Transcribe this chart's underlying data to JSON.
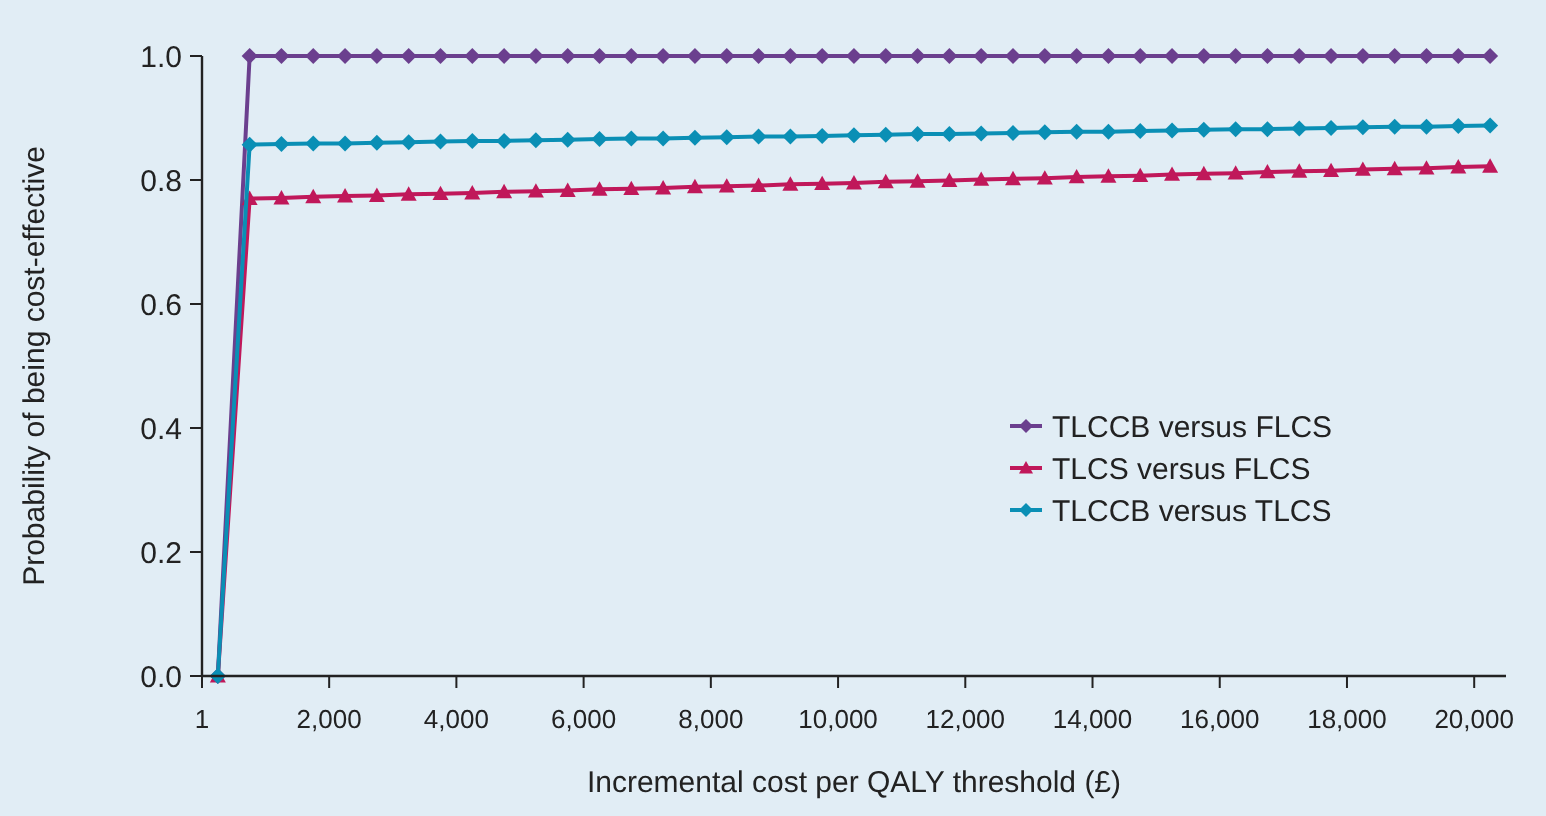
{
  "chart_data": {
    "type": "line",
    "xlabel": "Incremental cost per QALY threshold (£)",
    "ylabel": "Probability of being cost-effective",
    "x": [
      250,
      750,
      1250,
      1750,
      2250,
      2750,
      3250,
      3750,
      4250,
      4750,
      5250,
      5750,
      6250,
      6750,
      7250,
      7750,
      8250,
      8750,
      9250,
      9750,
      10250,
      10750,
      11250,
      11750,
      12250,
      12750,
      13250,
      13750,
      14250,
      14750,
      15250,
      15750,
      16250,
      16750,
      17250,
      17750,
      18250,
      18750,
      19250,
      19750,
      20250
    ],
    "xlim": [
      1,
      20500
    ],
    "xticks": [
      1,
      {
        "value": 2000,
        "label": "2,000"
      },
      {
        "value": 4000,
        "label": "4,000"
      },
      {
        "value": 6000,
        "label": "6,000"
      },
      {
        "value": 8000,
        "label": "8,000"
      },
      {
        "value": 10000,
        "label": "10,000"
      },
      {
        "value": 12000,
        "label": "12,000"
      },
      {
        "value": 14000,
        "label": "14,000"
      },
      {
        "value": 16000,
        "label": "16,000"
      },
      {
        "value": 18000,
        "label": "18,000"
      },
      {
        "value": 20000,
        "label": "20,000"
      }
    ],
    "ylim": [
      0,
      1
    ],
    "yticks": [
      {
        "value": 0,
        "label": "0.0"
      },
      {
        "value": 0.2,
        "label": "0.2"
      },
      {
        "value": 0.4,
        "label": "0.4"
      },
      {
        "value": 0.6,
        "label": "0.6"
      },
      {
        "value": 0.8,
        "label": "0.8"
      },
      {
        "value": 1,
        "label": "1.0"
      }
    ],
    "grid": false,
    "legend": "right",
    "series": [
      {
        "name": "TLCCB versus FLCS",
        "color": "#6b3f8e",
        "marker": "diamond",
        "values": [
          0,
          1,
          1,
          1,
          1,
          1,
          1,
          1,
          1,
          1,
          1,
          1,
          1,
          1,
          1,
          1,
          1,
          1,
          1,
          1,
          1,
          1,
          1,
          1,
          1,
          1,
          1,
          1,
          1,
          1,
          1,
          1,
          1,
          1,
          1,
          1,
          1,
          1,
          1,
          1,
          1
        ]
      },
      {
        "name": "TLCS versus FLCS",
        "color": "#c0185a",
        "marker": "triangle",
        "values": [
          0,
          0.77,
          0.771,
          0.773,
          0.774,
          0.775,
          0.777,
          0.778,
          0.779,
          0.781,
          0.782,
          0.783,
          0.785,
          0.786,
          0.787,
          0.789,
          0.79,
          0.791,
          0.793,
          0.794,
          0.795,
          0.797,
          0.798,
          0.799,
          0.801,
          0.802,
          0.803,
          0.805,
          0.806,
          0.807,
          0.809,
          0.81,
          0.811,
          0.813,
          0.814,
          0.815,
          0.817,
          0.818,
          0.819,
          0.821,
          0.822
        ]
      },
      {
        "name": "TLCCB versus TLCS",
        "color": "#0a8fb5",
        "marker": "diamond",
        "values": [
          0,
          0.857,
          0.858,
          0.859,
          0.859,
          0.86,
          0.861,
          0.862,
          0.863,
          0.863,
          0.864,
          0.865,
          0.866,
          0.867,
          0.867,
          0.868,
          0.869,
          0.87,
          0.87,
          0.871,
          0.872,
          0.873,
          0.874,
          0.874,
          0.875,
          0.876,
          0.877,
          0.878,
          0.878,
          0.879,
          0.88,
          0.881,
          0.882,
          0.882,
          0.883,
          0.884,
          0.885,
          0.886,
          0.886,
          0.887,
          0.888
        ]
      }
    ]
  }
}
